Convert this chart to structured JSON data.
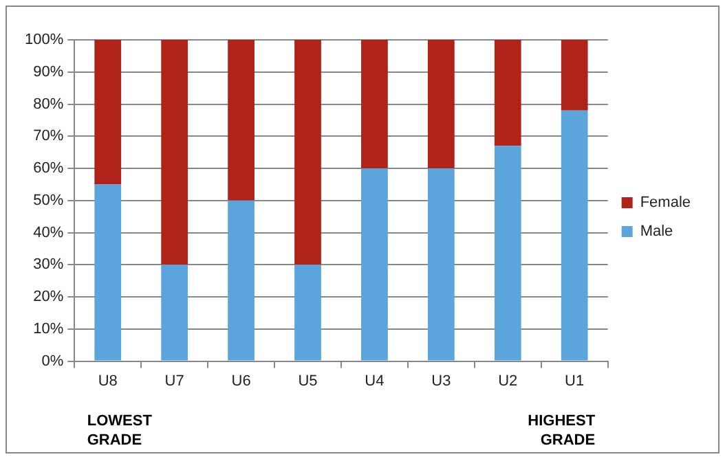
{
  "chart_data": {
    "type": "bar",
    "stacked": true,
    "categories": [
      "U8",
      "U7",
      "U6",
      "U5",
      "U4",
      "U3",
      "U2",
      "U1"
    ],
    "series": [
      {
        "name": "Male",
        "color": "#5ba5dc",
        "values": [
          55,
          30,
          50,
          30,
          60,
          60,
          67,
          78
        ]
      },
      {
        "name": "Female",
        "color": "#b02318",
        "values": [
          45,
          70,
          50,
          70,
          40,
          40,
          33,
          22
        ]
      }
    ],
    "ylim": [
      0,
      100
    ],
    "yticks": [
      {
        "value": 0,
        "label": "0%"
      },
      {
        "value": 10,
        "label": "10%"
      },
      {
        "value": 20,
        "label": "20%"
      },
      {
        "value": 30,
        "label": "30%"
      },
      {
        "value": 40,
        "label": "40%"
      },
      {
        "value": 50,
        "label": "50%"
      },
      {
        "value": 60,
        "label": "60%"
      },
      {
        "value": 70,
        "label": "70%"
      },
      {
        "value": 80,
        "label": "80%"
      },
      {
        "value": 90,
        "label": "90%"
      },
      {
        "value": 100,
        "label": "100%"
      }
    ],
    "grid": "y",
    "legend": "right",
    "annotations": [
      "LOWEST GRADE",
      "HIGHEST GRADE"
    ]
  }
}
